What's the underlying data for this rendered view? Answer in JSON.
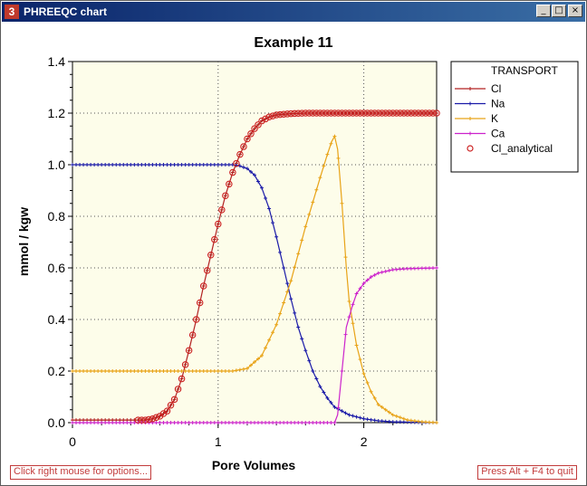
{
  "window": {
    "title": "PHREEQC chart",
    "app_icon_glyph": "3",
    "controls": {
      "minimize": "_",
      "maximize": "□",
      "close": "×"
    }
  },
  "status": {
    "left_hint": "Click right mouse for options...",
    "right_hint": "Press Alt + F4 to quit"
  },
  "colors": {
    "plot_bg": "#fdfdea",
    "Cl": "#b22222",
    "Na": "#1a1aa8",
    "K": "#e8a317",
    "Ca": "#cc22cc",
    "Cl_analytical": "#cc2222"
  },
  "chart_data": {
    "type": "line",
    "title": "Example 11",
    "xlabel": "Pore Volumes",
    "ylabel": "mmol / kgw",
    "xlim": [
      0,
      2.5
    ],
    "ylim": [
      0,
      1.4
    ],
    "xticks": [
      "0",
      "1",
      "2"
    ],
    "yticks": [
      "0.0",
      "0.2",
      "0.4",
      "0.6",
      "0.8",
      "1.0",
      "1.2",
      "1.4"
    ],
    "grid": true,
    "legend": {
      "title": "TRANSPORT",
      "position": "right"
    },
    "series": [
      {
        "name": "Cl",
        "color": "#b22222",
        "marker": "plus",
        "points": [
          [
            0,
            0.01
          ],
          [
            0.5,
            0.01
          ],
          [
            0.55,
            0.015
          ],
          [
            0.6,
            0.025
          ],
          [
            0.65,
            0.045
          ],
          [
            0.7,
            0.09
          ],
          [
            0.75,
            0.17
          ],
          [
            0.8,
            0.28
          ],
          [
            0.85,
            0.4
          ],
          [
            0.9,
            0.53
          ],
          [
            0.95,
            0.65
          ],
          [
            1.0,
            0.77
          ],
          [
            1.05,
            0.88
          ],
          [
            1.1,
            0.97
          ],
          [
            1.15,
            1.04
          ],
          [
            1.2,
            1.1
          ],
          [
            1.25,
            1.14
          ],
          [
            1.3,
            1.17
          ],
          [
            1.35,
            1.185
          ],
          [
            1.4,
            1.193
          ],
          [
            1.5,
            1.198
          ],
          [
            1.6,
            1.2
          ],
          [
            2.5,
            1.2
          ]
        ]
      },
      {
        "name": "Na",
        "color": "#1a1aa8",
        "marker": "plus",
        "points": [
          [
            0,
            1.0
          ],
          [
            1.1,
            1.0
          ],
          [
            1.15,
            0.995
          ],
          [
            1.2,
            0.985
          ],
          [
            1.25,
            0.96
          ],
          [
            1.3,
            0.91
          ],
          [
            1.35,
            0.83
          ],
          [
            1.4,
            0.72
          ],
          [
            1.45,
            0.6
          ],
          [
            1.5,
            0.48
          ],
          [
            1.55,
            0.37
          ],
          [
            1.6,
            0.28
          ],
          [
            1.65,
            0.2
          ],
          [
            1.7,
            0.14
          ],
          [
            1.75,
            0.095
          ],
          [
            1.8,
            0.06
          ],
          [
            1.9,
            0.03
          ],
          [
            2.0,
            0.015
          ],
          [
            2.1,
            0.007
          ],
          [
            2.2,
            0.003
          ],
          [
            2.5,
            0.0
          ]
        ]
      },
      {
        "name": "K",
        "color": "#e8a317",
        "marker": "plus",
        "points": [
          [
            0,
            0.2
          ],
          [
            1.1,
            0.2
          ],
          [
            1.2,
            0.21
          ],
          [
            1.3,
            0.26
          ],
          [
            1.4,
            0.38
          ],
          [
            1.5,
            0.55
          ],
          [
            1.6,
            0.76
          ],
          [
            1.7,
            0.95
          ],
          [
            1.75,
            1.04
          ],
          [
            1.78,
            1.09
          ],
          [
            1.8,
            1.11
          ],
          [
            1.82,
            1.06
          ],
          [
            1.85,
            0.85
          ],
          [
            1.88,
            0.6
          ],
          [
            1.9,
            0.47
          ],
          [
            1.95,
            0.3
          ],
          [
            2.0,
            0.19
          ],
          [
            2.05,
            0.12
          ],
          [
            2.1,
            0.07
          ],
          [
            2.2,
            0.03
          ],
          [
            2.3,
            0.01
          ],
          [
            2.4,
            0.003
          ],
          [
            2.5,
            0.0
          ]
        ]
      },
      {
        "name": "Ca",
        "color": "#cc22cc",
        "marker": "plus",
        "points": [
          [
            0,
            0.0
          ],
          [
            1.8,
            0.0
          ],
          [
            1.82,
            0.03
          ],
          [
            1.85,
            0.2
          ],
          [
            1.88,
            0.37
          ],
          [
            1.92,
            0.45
          ],
          [
            1.95,
            0.5
          ],
          [
            2.0,
            0.54
          ],
          [
            2.05,
            0.565
          ],
          [
            2.1,
            0.58
          ],
          [
            2.2,
            0.593
          ],
          [
            2.3,
            0.597
          ],
          [
            2.5,
            0.6
          ]
        ]
      },
      {
        "name": "Cl_analytical",
        "color": "#cc2222",
        "marker": "circle",
        "line": false,
        "points": [
          [
            0,
            0.01
          ],
          [
            0.5,
            0.01
          ],
          [
            0.55,
            0.015
          ],
          [
            0.6,
            0.025
          ],
          [
            0.65,
            0.045
          ],
          [
            0.7,
            0.09
          ],
          [
            0.75,
            0.17
          ],
          [
            0.8,
            0.28
          ],
          [
            0.85,
            0.4
          ],
          [
            0.9,
            0.53
          ],
          [
            0.95,
            0.65
          ],
          [
            1.0,
            0.77
          ],
          [
            1.05,
            0.88
          ],
          [
            1.1,
            0.97
          ],
          [
            1.15,
            1.04
          ],
          [
            1.2,
            1.1
          ],
          [
            1.25,
            1.14
          ],
          [
            1.3,
            1.17
          ],
          [
            1.35,
            1.185
          ],
          [
            1.4,
            1.193
          ],
          [
            1.5,
            1.198
          ],
          [
            1.6,
            1.2
          ],
          [
            2.5,
            1.2
          ]
        ]
      }
    ]
  }
}
